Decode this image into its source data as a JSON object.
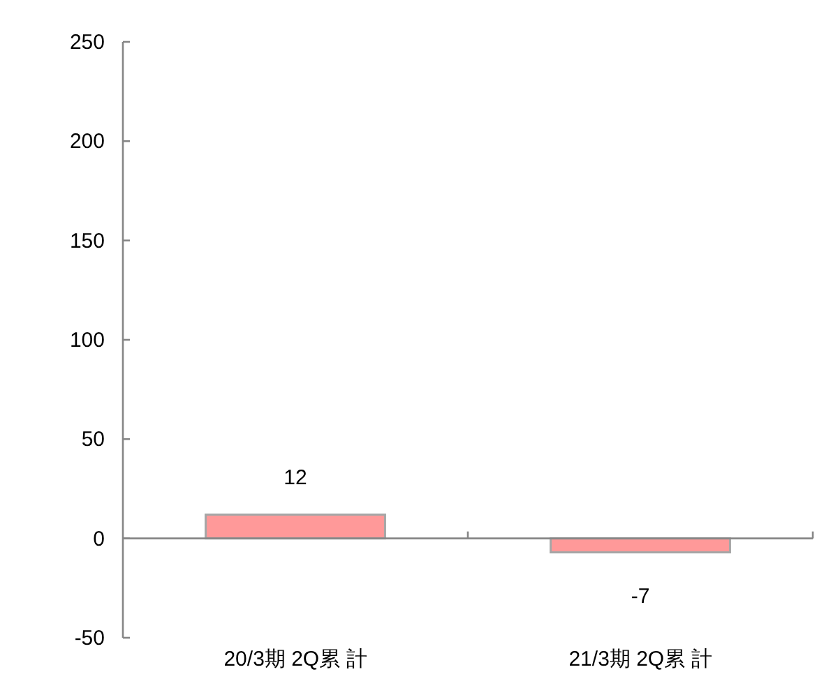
{
  "chart_data": {
    "type": "bar",
    "categories": [
      "20/3期 2Q累 計",
      "21/3期 2Q累 計"
    ],
    "values": [
      12,
      -7
    ],
    "color": "#ff9999",
    "ylim": [
      -50,
      250
    ],
    "yticks": [
      -50,
      0,
      50,
      100,
      150,
      200,
      250
    ],
    "data_labels": true
  }
}
